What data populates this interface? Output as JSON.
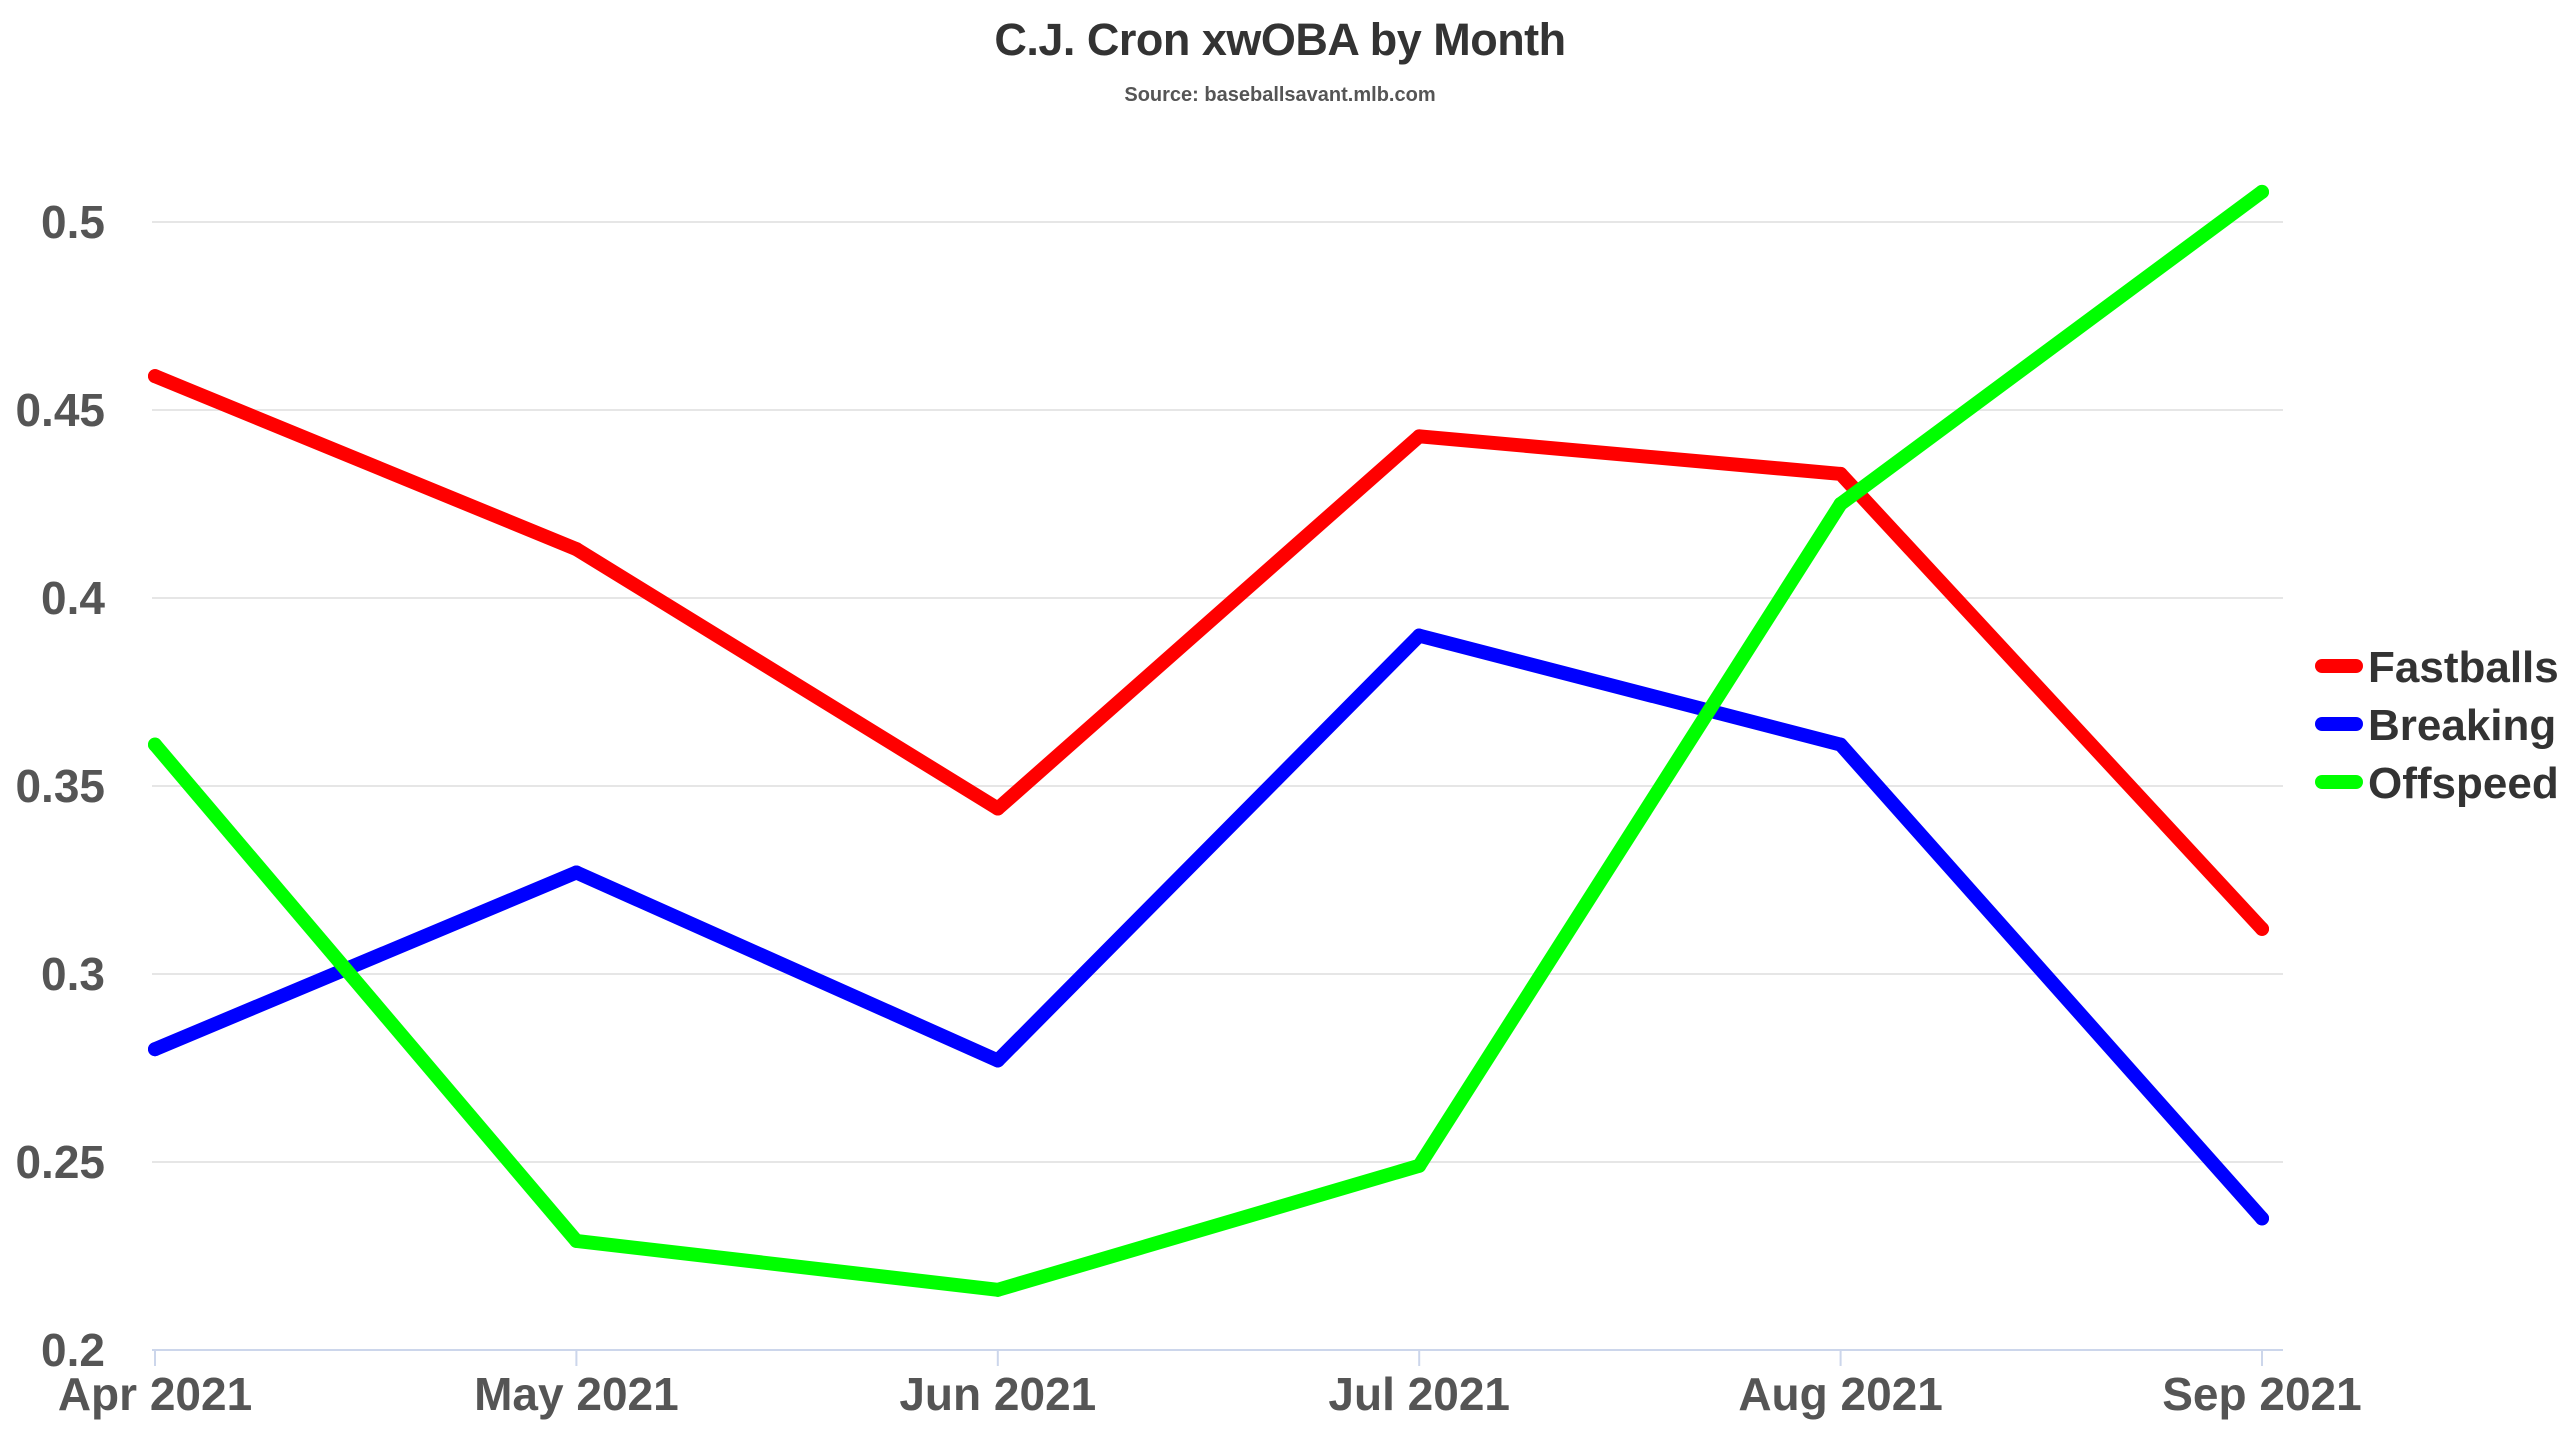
{
  "chart_data": {
    "type": "line",
    "title": "C.J. Cron xwOBA by Month",
    "subtitle": "Source: baseballsavant.mlb.com",
    "xlabel": "",
    "ylabel": "",
    "categories": [
      "Apr 2021",
      "May 2021",
      "Jun 2021",
      "Jul 2021",
      "Aug 2021",
      "Sep 2021"
    ],
    "ylim": [
      0.2,
      0.5
    ],
    "yticks": [
      "0.2",
      "0.25",
      "0.3",
      "0.35",
      "0.4",
      "0.45",
      "0.5"
    ],
    "grid": true,
    "legend_position": "right",
    "series": [
      {
        "name": "Fastballs",
        "color": "#ff0000",
        "values": [
          0.459,
          0.413,
          0.344,
          0.443,
          0.433,
          0.312
        ]
      },
      {
        "name": "Breaking",
        "color": "#0000ff",
        "values": [
          0.28,
          0.327,
          0.277,
          0.39,
          0.361,
          0.235
        ]
      },
      {
        "name": "Offspeed",
        "color": "#00ff00",
        "values": [
          0.361,
          0.229,
          0.216,
          0.249,
          0.425,
          0.508
        ]
      }
    ]
  }
}
